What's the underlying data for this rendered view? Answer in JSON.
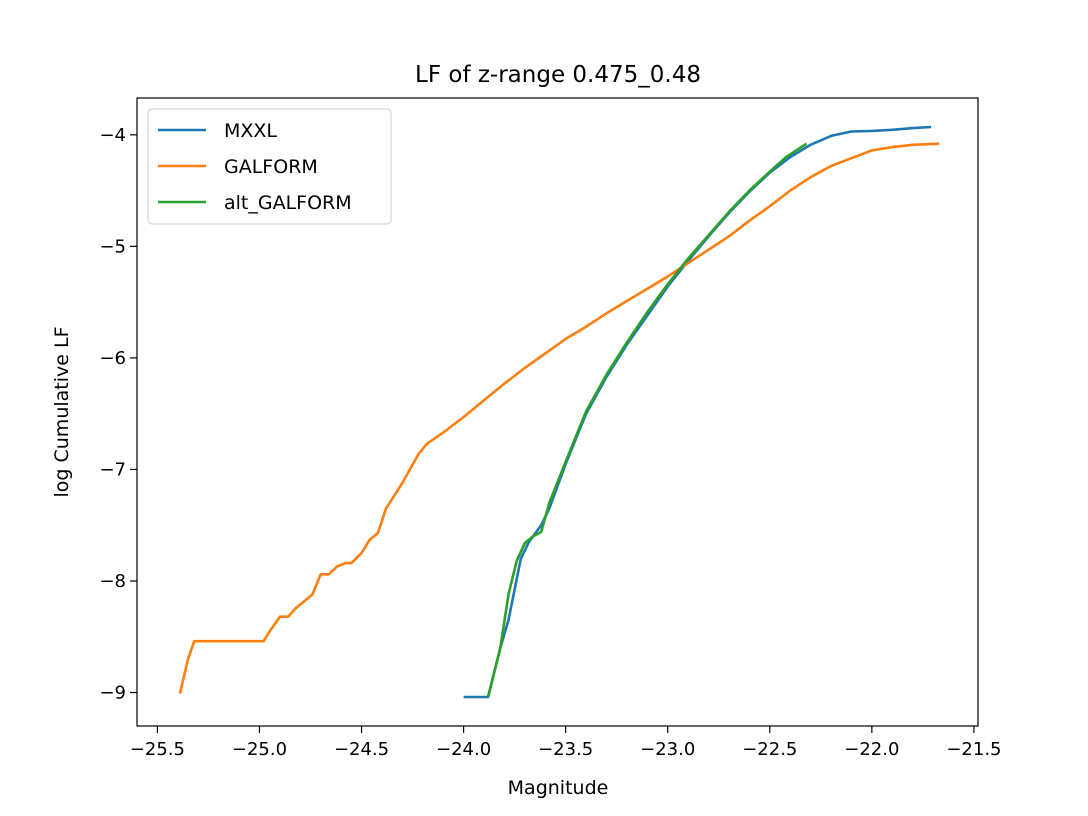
{
  "chart_data": {
    "type": "line",
    "title": "LF of z-range 0.475_0.48",
    "xlabel": "Magnitude",
    "ylabel": "log Cumulative LF",
    "xlim": [
      -25.6,
      -21.48
    ],
    "ylim": [
      -9.3,
      -3.67
    ],
    "x_ticks": [
      -25.5,
      -25.0,
      -24.5,
      -24.0,
      -23.5,
      -23.0,
      -22.5,
      -22.0,
      -21.5
    ],
    "x_tick_labels": [
      "−25.5",
      "−25.0",
      "−24.5",
      "−24.0",
      "−23.5",
      "−23.0",
      "−22.5",
      "−22.0",
      "−21.5"
    ],
    "y_ticks": [
      -9,
      -8,
      -7,
      -6,
      -5,
      -4
    ],
    "y_tick_labels": [
      "−9",
      "−8",
      "−7",
      "−6",
      "−5",
      "−4"
    ],
    "grid": false,
    "legend_position": "top-left",
    "series": [
      {
        "name": "MXXL",
        "color": "#1f77b4",
        "points": [
          [
            -24.0,
            -9.04
          ],
          [
            -23.88,
            -9.04
          ],
          [
            -23.82,
            -8.6
          ],
          [
            -23.78,
            -8.35
          ],
          [
            -23.72,
            -7.8
          ],
          [
            -23.68,
            -7.65
          ],
          [
            -23.62,
            -7.5
          ],
          [
            -23.58,
            -7.35
          ],
          [
            -23.5,
            -6.95
          ],
          [
            -23.4,
            -6.5
          ],
          [
            -23.3,
            -6.17
          ],
          [
            -23.2,
            -5.88
          ],
          [
            -23.1,
            -5.62
          ],
          [
            -23.0,
            -5.36
          ],
          [
            -22.9,
            -5.13
          ],
          [
            -22.8,
            -4.91
          ],
          [
            -22.7,
            -4.7
          ],
          [
            -22.6,
            -4.51
          ],
          [
            -22.5,
            -4.34
          ],
          [
            -22.4,
            -4.2
          ],
          [
            -22.3,
            -4.09
          ],
          [
            -22.2,
            -4.01
          ],
          [
            -22.1,
            -3.97
          ],
          [
            -22.0,
            -3.965
          ],
          [
            -21.9,
            -3.955
          ],
          [
            -21.8,
            -3.94
          ],
          [
            -21.71,
            -3.93
          ]
        ]
      },
      {
        "name": "GALFORM",
        "color": "#ff7f0e",
        "points": [
          [
            -25.39,
            -9.01
          ],
          [
            -25.35,
            -8.7
          ],
          [
            -25.32,
            -8.54
          ],
          [
            -25.25,
            -8.54
          ],
          [
            -25.1,
            -8.54
          ],
          [
            -24.98,
            -8.54
          ],
          [
            -24.95,
            -8.45
          ],
          [
            -24.9,
            -8.32
          ],
          [
            -24.86,
            -8.32
          ],
          [
            -24.82,
            -8.24
          ],
          [
            -24.78,
            -8.18
          ],
          [
            -24.74,
            -8.12
          ],
          [
            -24.7,
            -7.94
          ],
          [
            -24.66,
            -7.94
          ],
          [
            -24.62,
            -7.87
          ],
          [
            -24.58,
            -7.84
          ],
          [
            -24.55,
            -7.84
          ],
          [
            -24.5,
            -7.75
          ],
          [
            -24.46,
            -7.63
          ],
          [
            -24.42,
            -7.57
          ],
          [
            -24.38,
            -7.35
          ],
          [
            -24.3,
            -7.12
          ],
          [
            -24.22,
            -6.86
          ],
          [
            -24.18,
            -6.77
          ],
          [
            -24.1,
            -6.67
          ],
          [
            -24.0,
            -6.53
          ],
          [
            -23.9,
            -6.38
          ],
          [
            -23.8,
            -6.23
          ],
          [
            -23.7,
            -6.09
          ],
          [
            -23.6,
            -5.96
          ],
          [
            -23.5,
            -5.83
          ],
          [
            -23.4,
            -5.72
          ],
          [
            -23.3,
            -5.6
          ],
          [
            -23.2,
            -5.49
          ],
          [
            -23.1,
            -5.38
          ],
          [
            -23.0,
            -5.27
          ],
          [
            -22.9,
            -5.15
          ],
          [
            -22.8,
            -5.03
          ],
          [
            -22.7,
            -4.91
          ],
          [
            -22.6,
            -4.77
          ],
          [
            -22.5,
            -4.64
          ],
          [
            -22.4,
            -4.5
          ],
          [
            -22.3,
            -4.38
          ],
          [
            -22.2,
            -4.28
          ],
          [
            -22.1,
            -4.21
          ],
          [
            -22.0,
            -4.14
          ],
          [
            -21.9,
            -4.11
          ],
          [
            -21.8,
            -4.09
          ],
          [
            -21.67,
            -4.08
          ]
        ]
      },
      {
        "name": "alt_GALFORM",
        "color": "#2ca02c",
        "points": [
          [
            -23.88,
            -9.04
          ],
          [
            -23.82,
            -8.6
          ],
          [
            -23.78,
            -8.12
          ],
          [
            -23.74,
            -7.82
          ],
          [
            -23.7,
            -7.66
          ],
          [
            -23.66,
            -7.6
          ],
          [
            -23.62,
            -7.56
          ],
          [
            -23.58,
            -7.3
          ],
          [
            -23.5,
            -6.93
          ],
          [
            -23.4,
            -6.48
          ],
          [
            -23.3,
            -6.15
          ],
          [
            -23.2,
            -5.86
          ],
          [
            -23.1,
            -5.59
          ],
          [
            -23.0,
            -5.34
          ],
          [
            -22.9,
            -5.11
          ],
          [
            -22.8,
            -4.9
          ],
          [
            -22.7,
            -4.69
          ],
          [
            -22.6,
            -4.5
          ],
          [
            -22.5,
            -4.33
          ],
          [
            -22.42,
            -4.2
          ],
          [
            -22.32,
            -4.08
          ]
        ]
      }
    ]
  }
}
